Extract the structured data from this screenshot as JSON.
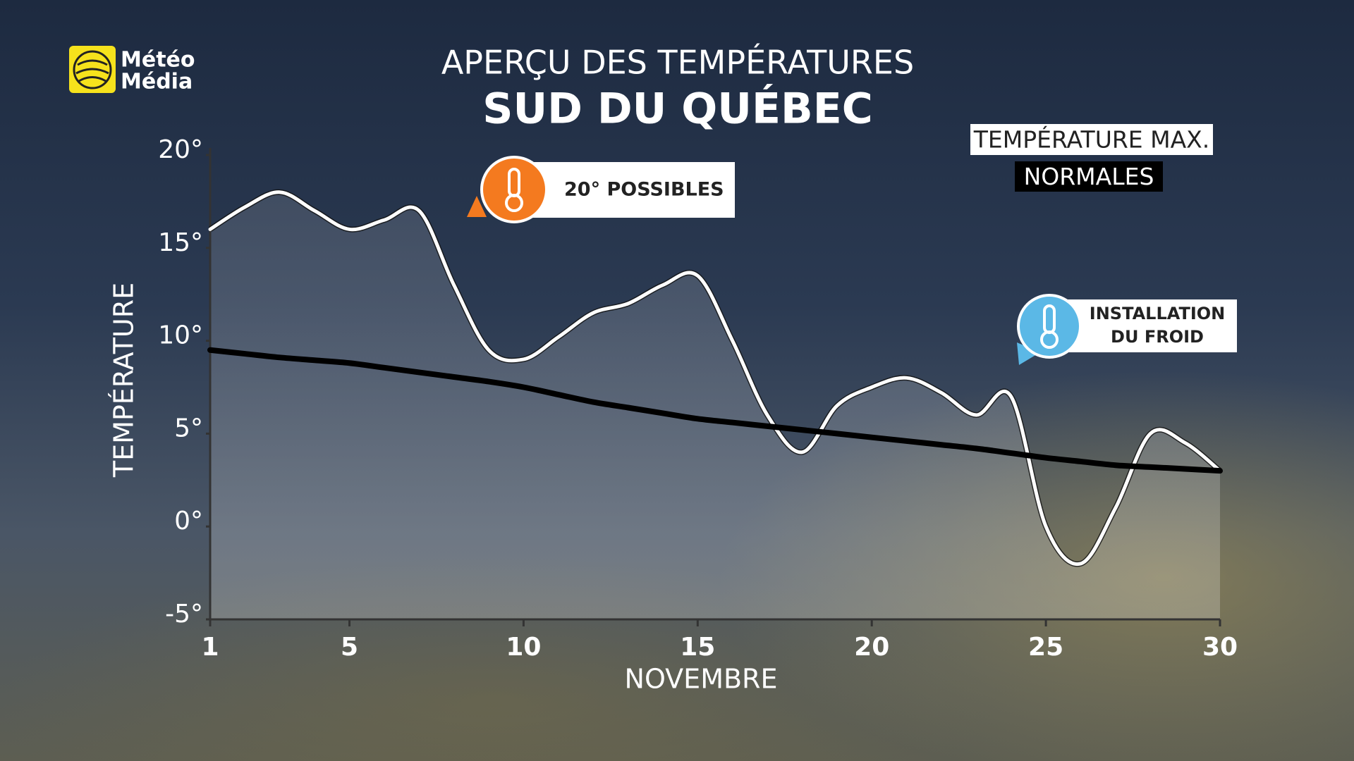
{
  "logo": {
    "lines": [
      "Météo",
      "Média"
    ]
  },
  "chart_data": {
    "type": "line",
    "title": "APERÇU DES TEMPÉRATURES",
    "subtitle": "SUD DU QUÉBEC",
    "y_label": "TEMPÉRATURE",
    "x_label": "NOVEMBRE",
    "x": [
      1,
      2,
      3,
      4,
      5,
      6,
      7,
      8,
      9,
      10,
      11,
      12,
      13,
      14,
      15,
      16,
      17,
      18,
      19,
      20,
      21,
      22,
      23,
      24,
      25,
      26,
      27,
      28,
      29,
      30
    ],
    "series": [
      {
        "name": "TEMPÉRATURE MAX.",
        "color": "#ffffff",
        "values": [
          16,
          17.2,
          18,
          17,
          16,
          16.5,
          17,
          13,
          9.5,
          9,
          10.2,
          11.5,
          12,
          13,
          13.5,
          10,
          6,
          4,
          6.5,
          7.5,
          8,
          7.2,
          6,
          7,
          0,
          -2,
          1,
          5,
          4.5,
          3
        ]
      },
      {
        "name": "NORMALES",
        "color": "#000000",
        "values": [
          9.5,
          9.3,
          9.1,
          8.95,
          8.8,
          8.55,
          8.3,
          8.05,
          7.8,
          7.5,
          7.1,
          6.7,
          6.4,
          6.1,
          5.8,
          5.6,
          5.4,
          5.2,
          5.0,
          4.8,
          4.6,
          4.4,
          4.2,
          3.95,
          3.7,
          3.5,
          3.3,
          3.2,
          3.1,
          3
        ]
      }
    ],
    "xlim": [
      1,
      30
    ],
    "xticks": [
      1,
      5,
      10,
      15,
      20,
      25,
      30
    ],
    "ylim": [
      -5,
      20
    ],
    "yticks": [
      {
        "value": -5,
        "label": "-5°"
      },
      {
        "value": 0,
        "label": "0°"
      },
      {
        "value": 5,
        "label": "5°"
      },
      {
        "value": 10,
        "label": "10°"
      },
      {
        "value": 15,
        "label": "15°"
      },
      {
        "value": 20,
        "label": "20°"
      }
    ],
    "annotations": [
      {
        "lines": [
          "20° POSSIBLES"
        ],
        "color": "#f47a1f"
      },
      {
        "lines": [
          "INSTALLATION",
          "DU FROID"
        ],
        "color": "#5bb8e6"
      }
    ]
  }
}
